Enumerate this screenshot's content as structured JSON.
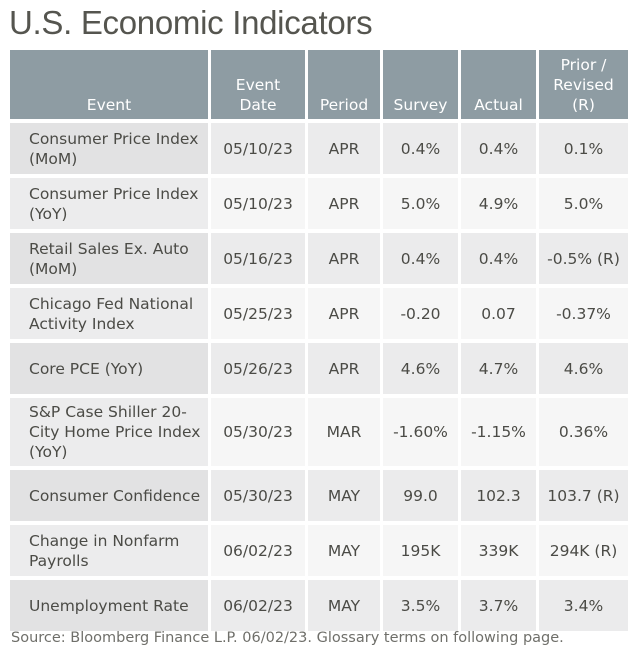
{
  "title": "U.S. Economic Indicators",
  "table": {
    "headers": {
      "event": "Event",
      "event_date_line1": "Event",
      "event_date_line2": "Date",
      "period": "Period",
      "survey": "Survey",
      "actual": "Actual",
      "prior_line1": "Prior /",
      "prior_line2": "Revised",
      "prior_line3": "(R)"
    },
    "rows": [
      {
        "event_line1": "Consumer Price Index",
        "event_line2": "(MoM)",
        "event_line3": "",
        "date": "05/10/23",
        "period": "APR",
        "survey": "0.4%",
        "actual": "0.4%",
        "prior": "0.1%"
      },
      {
        "event_line1": "Consumer Price Index",
        "event_line2": "(YoY)",
        "event_line3": "",
        "date": "05/10/23",
        "period": "APR",
        "survey": "5.0%",
        "actual": "4.9%",
        "prior": "5.0%"
      },
      {
        "event_line1": "Retail Sales Ex. Auto",
        "event_line2": "(MoM)",
        "event_line3": "",
        "date": "05/16/23",
        "period": "APR",
        "survey": "0.4%",
        "actual": "0.4%",
        "prior": "-0.5% (R)"
      },
      {
        "event_line1": "Chicago Fed National",
        "event_line2": "Activity Index",
        "event_line3": "",
        "date": "05/25/23",
        "period": "APR",
        "survey": "-0.20",
        "actual": "0.07",
        "prior": "-0.37%"
      },
      {
        "event_line1": "Core PCE (YoY)",
        "event_line2": "",
        "event_line3": "",
        "date": "05/26/23",
        "period": "APR",
        "survey": "4.6%",
        "actual": "4.7%",
        "prior": "4.6%"
      },
      {
        "event_line1": "S&P Case Shiller 20-",
        "event_line2": "City Home Price Index",
        "event_line3": "(YoY)",
        "date": "05/30/23",
        "period": "MAR",
        "survey": "-1.60%",
        "actual": "-1.15%",
        "prior": "0.36%"
      },
      {
        "event_line1": "Consumer Confidence",
        "event_line2": "",
        "event_line3": "",
        "date": "05/30/23",
        "period": "MAY",
        "survey": "99.0",
        "actual": "102.3",
        "prior": "103.7 (R)"
      },
      {
        "event_line1": "Change in Nonfarm",
        "event_line2": "Payrolls",
        "event_line3": "",
        "date": "06/02/23",
        "period": "MAY",
        "survey": "195K",
        "actual": "339K",
        "prior": "294K (R)"
      },
      {
        "event_line1": "Unemployment Rate",
        "event_line2": "",
        "event_line3": "",
        "date": "06/02/23",
        "period": "MAY",
        "survey": "3.5%",
        "actual": "3.7%",
        "prior": "3.4%"
      }
    ]
  },
  "footer": "Source: Bloomberg Finance L.P. 06/02/23. Glossary terms on following page.",
  "colors": {
    "header_bg": "#8e9ca3",
    "header_text": "#ffffff",
    "row_odd_bg": "#ebebec",
    "row_even_bg": "#f6f6f6",
    "text": "#4b4b46"
  }
}
